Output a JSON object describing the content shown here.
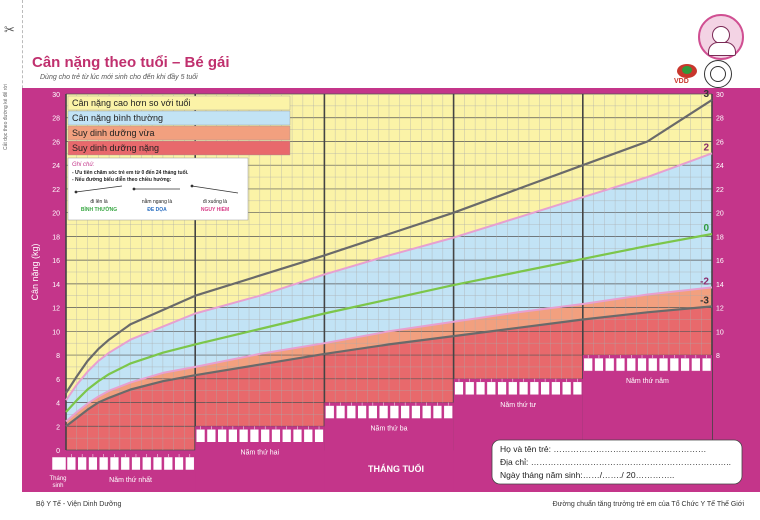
{
  "header": {
    "title": "Cân nặng theo tuổi – Bé gái",
    "subtitle": "Dùng cho trẻ từ lúc mới sinh cho đến khi đầy 5 tuổi",
    "logo_vdd": "VDD"
  },
  "margin_text": "Cắt dọc theo đường kẻ để rời",
  "legend": {
    "items": [
      {
        "label": "Cân nặng cao hơn so với tuổi",
        "color": "#fbf3a7"
      },
      {
        "label": "Cân nặng bình thường",
        "color": "#c2e3f5"
      },
      {
        "label": "Suy dinh dưỡng vừa",
        "color": "#f2a07f"
      },
      {
        "label": "Suy dinh dưỡng nặng",
        "color": "#e8696c"
      }
    ]
  },
  "notes": {
    "heading": "Ghi chú:",
    "line1": "- Ưu tiên chăm sóc trẻ em từ 0 đến 24 tháng tuổi.",
    "line2": "- Nếu đường biểu diễn theo chiều hướng:",
    "trends": [
      {
        "caption": "đi lên là",
        "status": "BÌNH THƯỜNG",
        "color": "#3aa845"
      },
      {
        "caption": "nằm ngang là",
        "status": "ĐE DỌA",
        "color": "#2a6fc2"
      },
      {
        "caption": "đi xuống là",
        "status": "NGUY HIỂM",
        "color": "#d9408a"
      }
    ]
  },
  "footer": {
    "left": "Bộ Y Tế - Viện Dinh Dưỡng",
    "right": "Đường chuẩn tăng trưởng trẻ em của Tổ Chức Y Tế Thế Giới",
    "name_label": "Họ và tên trẻ: ………………………………………………",
    "address_label": "Địa chỉ: ……………………………………………………………..",
    "dob_label": "Ngày tháng năm sinh:……/……./ 20………….."
  },
  "chart_data": {
    "type": "line",
    "title": "Cân nặng theo tuổi – Bé gái",
    "ylabel": "Cân nặng (kg)",
    "xlabel": "THÁNG TUỔI",
    "xlim": [
      0,
      60
    ],
    "ylim": [
      0,
      30
    ],
    "yticks_left": [
      0,
      2,
      4,
      6,
      8,
      10,
      12,
      14,
      16,
      18,
      20,
      22,
      24,
      26,
      28,
      30
    ],
    "yticks_right": [
      8,
      10,
      12,
      14,
      16,
      18,
      20,
      22,
      24,
      26,
      28,
      30
    ],
    "year_labels": [
      "Tháng sinh",
      "Năm thứ nhất",
      "Năm thứ hai",
      "Năm thứ ba",
      "Năm thứ tư",
      "Năm thứ năm"
    ],
    "x": [
      0,
      1,
      2,
      3,
      4,
      6,
      9,
      12,
      18,
      24,
      30,
      36,
      42,
      48,
      54,
      60
    ],
    "series": [
      {
        "name": "3",
        "color": "#6a6a6a",
        "values": [
          4.8,
          6.2,
          7.5,
          8.5,
          9.3,
          10.6,
          11.8,
          13.0,
          14.7,
          16.4,
          18.2,
          20.0,
          22.0,
          24.0,
          26.0,
          29.5
        ]
      },
      {
        "name": "2",
        "color": "#e7a0d0",
        "values": [
          4.2,
          5.5,
          6.6,
          7.5,
          8.2,
          9.3,
          10.4,
          11.5,
          13.0,
          14.8,
          16.4,
          17.9,
          19.6,
          21.3,
          23.0,
          25.0
        ]
      },
      {
        "name": "0",
        "color": "#7cc64a",
        "values": [
          3.2,
          4.2,
          5.1,
          5.8,
          6.4,
          7.3,
          8.2,
          8.9,
          10.2,
          11.5,
          12.7,
          13.9,
          15.0,
          16.1,
          17.2,
          18.2
        ]
      },
      {
        "name": "-2",
        "color": "#e7a0d0",
        "values": [
          2.4,
          3.2,
          3.9,
          4.5,
          5.0,
          5.7,
          6.5,
          7.0,
          8.1,
          9.0,
          10.0,
          10.8,
          11.6,
          12.3,
          13.1,
          13.7
        ]
      },
      {
        "name": "-3",
        "color": "#6a6a6a",
        "values": [
          2.0,
          2.7,
          3.4,
          4.0,
          4.4,
          5.1,
          5.8,
          6.3,
          7.2,
          8.1,
          8.9,
          9.6,
          10.3,
          11.0,
          11.6,
          12.1
        ]
      }
    ]
  }
}
